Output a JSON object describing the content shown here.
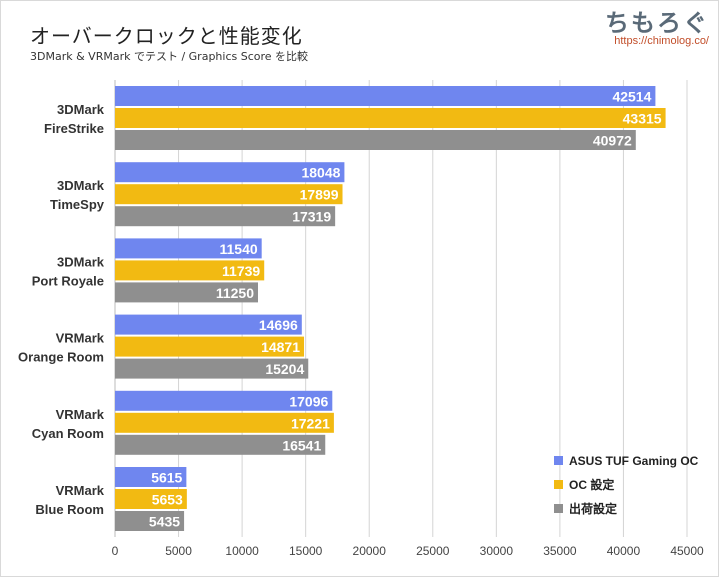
{
  "header": {
    "title": "オーバークロックと性能変化",
    "subtitle": "3DMark & VRMark でテスト / Graphics Score を比較",
    "logo_text": "ちもろぐ",
    "logo_url": "https://chimolog.co/"
  },
  "colors": {
    "blue": "#6f86ef",
    "orange": "#f2ba12",
    "gray": "#8f8f8f",
    "grid": "#d4d4d4"
  },
  "chart_data": {
    "type": "bar",
    "orientation": "horizontal",
    "categories": [
      [
        "3DMark",
        "FireStrike"
      ],
      [
        "3DMark",
        "TimeSpy"
      ],
      [
        "3DMark",
        "Port Royale"
      ],
      [
        "VRMark",
        "Orange Room"
      ],
      [
        "VRMark",
        "Cyan Room"
      ],
      [
        "VRMark",
        "Blue Room"
      ]
    ],
    "series": [
      {
        "name": "ASUS TUF Gaming OC",
        "color": "#6f86ef",
        "values": [
          42514,
          18048,
          11540,
          14696,
          17096,
          5615
        ]
      },
      {
        "name": "OC 設定",
        "color": "#f2ba12",
        "values": [
          43315,
          17899,
          11739,
          14871,
          17221,
          5653
        ]
      },
      {
        "name": "出荷設定",
        "color": "#8f8f8f",
        "values": [
          40972,
          17319,
          11250,
          15204,
          16541,
          5435
        ]
      }
    ],
    "xlim": [
      0,
      45000
    ],
    "xticks": [
      0,
      5000,
      10000,
      15000,
      20000,
      25000,
      30000,
      35000,
      40000,
      45000
    ],
    "grid": true,
    "legend_position": "bottom-right"
  }
}
